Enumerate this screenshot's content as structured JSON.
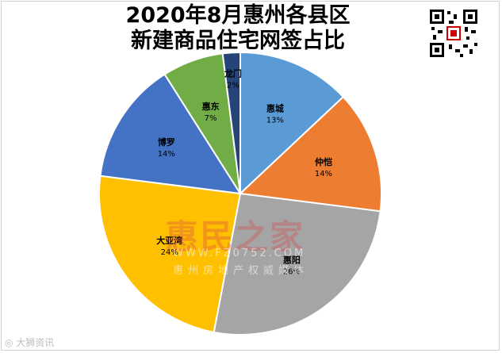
{
  "title_line1": "2020年8月惠州各县区",
  "title_line2": "新建商品住宅网签占比",
  "watermark": {
    "brand": "惠民之家",
    "url": "WWW.FZ0752.COM",
    "tagline": "惠州房地产权威媒体"
  },
  "footer": "大狮资讯",
  "colors": {
    "huicheng": "#5B9BD5",
    "zhongkai": "#ED7D31",
    "huiyang": "#A5A5A5",
    "dayawan": "#FFC000",
    "boluo": "#4472C4",
    "huidong": "#70AD47",
    "longmen": "#264478"
  },
  "chart_data": {
    "type": "pie",
    "title": "2020年8月惠州各县区新建商品住宅网签占比",
    "slices": [
      {
        "label": "惠城",
        "value": 13,
        "pct": "13%",
        "color": "#5B9BD5"
      },
      {
        "label": "仲恺",
        "value": 14,
        "pct": "14%",
        "color": "#ED7D31"
      },
      {
        "label": "惠阳",
        "value": 26,
        "pct": "26%",
        "color": "#A5A5A5"
      },
      {
        "label": "大亚湾",
        "value": 24,
        "pct": "24%",
        "color": "#FFC000"
      },
      {
        "label": "博罗",
        "value": 14,
        "pct": "14%",
        "color": "#4472C4"
      },
      {
        "label": "惠东",
        "value": 7,
        "pct": "7%",
        "color": "#70AD47"
      },
      {
        "label": "龙门",
        "value": 2,
        "pct": "2%",
        "color": "#264478"
      }
    ]
  }
}
